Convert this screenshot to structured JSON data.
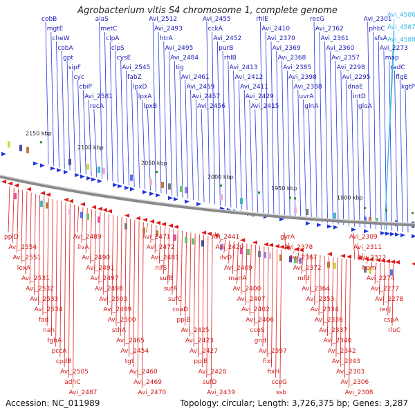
{
  "title": "Agrobacterium vitis S4 chromosome 1, complete genome",
  "accession": "Accession: NC_011989",
  "topology": "Topology: circular; Length: 3,726,375 bp; Genes: 3,287",
  "colors": {
    "forward_label": "#1a1ab4",
    "reverse_label": "#d01818",
    "highlight_label": "#39b8e6",
    "forward_gene": "#1f33e0",
    "reverse_gene": "#e01b1b",
    "backbone": "#8a8a8a"
  },
  "ticks": [
    "2150 kbp",
    "2100 kbp",
    "2050 kbp",
    "2000 kbp",
    "1950 kbp",
    "1900 kbp"
  ],
  "forward_labels": [
    "cobB",
    "mgtE",
    "cheW",
    "cobA",
    "gpt",
    "sipF",
    "cyc",
    "cbiP",
    "Avi_2581",
    "recA",
    "alaS",
    "metC",
    "clpA",
    "clpS",
    "cysE",
    "Avi_2545",
    "fabZ",
    "lpxD",
    "lpxA",
    "lpxB",
    "Avi_2512",
    "Avi_2493",
    "htrA",
    "Avi_2495",
    "Avi_2484",
    "tig",
    "Avi_2461",
    "Avi_2459",
    "Avi_2457",
    "Avi_2456",
    "Avi_2455",
    "cckA",
    "Avi_2452",
    "purB",
    "rhlB",
    "Avi_2413",
    "Avi_2412",
    "Avi_2411",
    "Avi_2429",
    "Avi_2415",
    "rhlE",
    "Avi_2410",
    "Avi_2370",
    "Avi_2369",
    "Avi_2368",
    "Avi_2385",
    "Avi_2398",
    "Avi_2388",
    "uvrA",
    "glnA",
    "recG",
    "Avi_2362",
    "Avi_2361",
    "Avi_2360",
    "Avi_2357",
    "Avi_2298",
    "Avi_2295",
    "dnaE",
    "intD",
    "gloA",
    "Avi_2301",
    "phbC",
    "sfsA",
    "Avi_2273",
    "map",
    "radC",
    "flgE",
    "kgtP"
  ],
  "highlight_labels": [
    "Avi_4586",
    "Avi_4587",
    "Avi_4588"
  ],
  "reverse_labels": [
    "ppiD",
    "Avi_2554",
    "Avi_2551",
    "lexA",
    "Avi_2531",
    "Avi_2532",
    "Avi_2533",
    "Avi_2534",
    "fad",
    "nah",
    "fghA",
    "pccA",
    "cpdB",
    "Avi_2505",
    "adhC",
    "Avi_2487",
    "Avi_2489",
    "ilvA",
    "Avi_2490",
    "Avi_2491",
    "Avi_2497",
    "Avi_2498",
    "Avi_2503",
    "Avi_2499",
    "Avi_2500",
    "sthA",
    "Avi_2465",
    "Avi_2454",
    "tgt",
    "Avi_2460",
    "Avi_2469",
    "Avi_2470",
    "Avi_2471",
    "Avi_2472",
    "Avi_2481",
    "nifS",
    "sufB",
    "sufA",
    "sufC",
    "coaD",
    "ppiB",
    "Avi_2425",
    "Avi_2423",
    "Avi_2427",
    "ppiB",
    "Avi_2428",
    "sufD",
    "Avi_2439",
    "Avi_2441",
    "Avi_2420",
    "ilvD",
    "Avi_2409",
    "manA",
    "Avi_2400",
    "Avi_2407",
    "Avi_2402",
    "Avi_2406",
    "ccoS",
    "gnd",
    "Avi_2397",
    "fixI",
    "fixH",
    "ccoG",
    "ssb",
    "gyrA",
    "Avi_2378",
    "Avi_2367",
    "Avi_2372",
    "mfd",
    "Avi_2364",
    "Avi_2353",
    "Avi_2334",
    "Avi_2336",
    "Avi_2337",
    "Avi_2340",
    "Avi_2342",
    "Avi_2343",
    "Avi_2303",
    "Avi_2306",
    "Avi_2308",
    "Avi_2309",
    "Avi_2311",
    "Avi_2312",
    "hom",
    "Avi_2274",
    "Avi_2277",
    "Avi_2278",
    "recJ",
    "cspA",
    "rluC"
  ]
}
